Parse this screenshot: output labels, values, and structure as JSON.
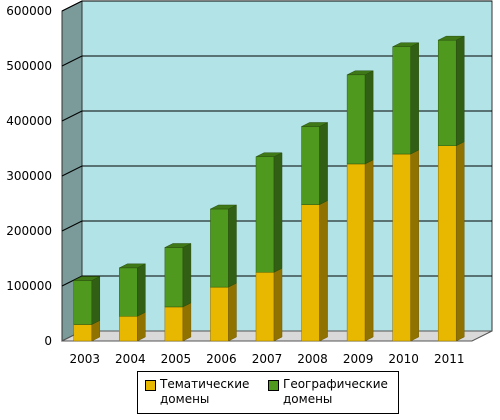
{
  "chart_data": {
    "type": "bar",
    "stacked": true,
    "three_d": true,
    "categories": [
      "2003",
      "2004",
      "2005",
      "2006",
      "2007",
      "2008",
      "2009",
      "2010",
      "2011"
    ],
    "series": [
      {
        "name": "Тематические\nдомены",
        "color": "#e8b800",
        "values": [
          30000,
          45000,
          62000,
          98000,
          125000,
          248000,
          322000,
          340000,
          355000
        ]
      },
      {
        "name": "Географические\nдомены",
        "color": "#4f9a1e",
        "values": [
          80000,
          88000,
          108000,
          142000,
          210000,
          142000,
          162000,
          195000,
          192000
        ]
      }
    ],
    "ylim": [
      0,
      600000
    ],
    "yticks": [
      "0",
      "100000",
      "200000",
      "300000",
      "400000",
      "500000",
      "600000"
    ],
    "grid": true,
    "legend_position": "bottom",
    "plot_background": "#b2e3e6",
    "wall_color": "#7a9b9a"
  }
}
